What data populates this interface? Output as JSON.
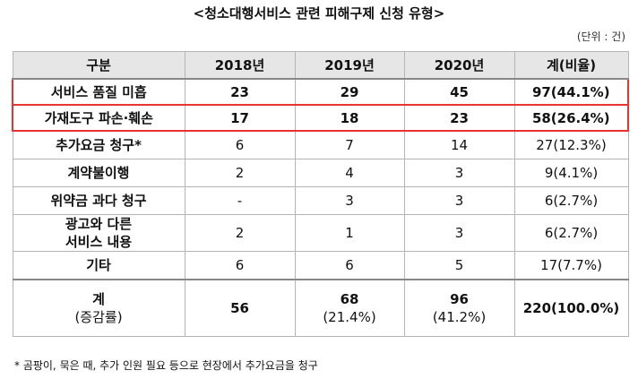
{
  "title": "<청소대행서비스 관련 피해구제 신청 유형>",
  "unit": "(단위 : 건)",
  "table": {
    "header": [
      "구분",
      "2018년",
      "2019년",
      "2020년",
      "계(비율)"
    ],
    "rows": [
      [
        "서비스 품질 미흡",
        "23",
        "29",
        "45",
        "97(44.1%)"
      ],
      [
        "가재도구 파손·훼손",
        "17",
        "18",
        "23",
        "58(26.4%)"
      ],
      [
        "추가요금 청구*",
        "6",
        "7",
        "14",
        "27(12.3%)"
      ],
      [
        "계약불이행",
        "2",
        "4",
        "3",
        "9(4.1%)"
      ],
      [
        "위약금 과다 청구",
        "-",
        "3",
        "3",
        "6(2.7%)"
      ],
      [
        "광고와 다른\n서비스 내용",
        "2",
        "1",
        "3",
        "6(2.7%)"
      ],
      [
        "기타",
        "6",
        "6",
        "5",
        "17(7.7%)"
      ]
    ],
    "total": [
      {
        "main": "계",
        "sub": "(증감률)"
      },
      {
        "main": "56"
      },
      {
        "main": "68",
        "sub": "(21.4%)"
      },
      {
        "main": "96",
        "sub": "(41.2%)"
      },
      {
        "main": "220(100.0%)"
      }
    ]
  },
  "footnote": "* 곰팡이, 묵은 때, 추가 인원 필요 등으로 현장에서 추가요금을 청구"
}
